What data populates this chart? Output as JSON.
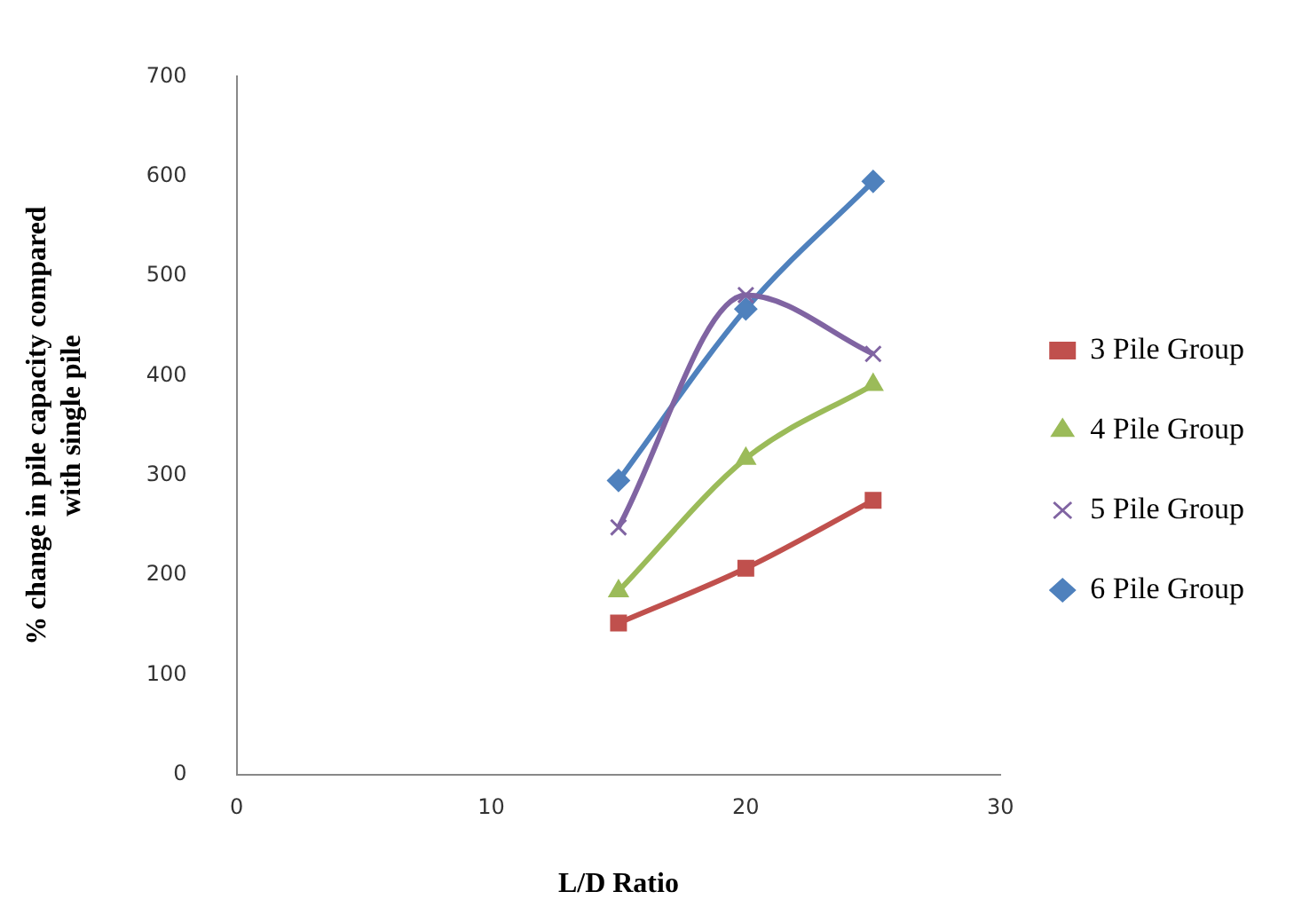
{
  "chart_data": {
    "type": "line",
    "xlabel": "L/D Ratio",
    "ylabel": "% change in pile capacity compared with single pile",
    "x": [
      15,
      20,
      25
    ],
    "series": [
      {
        "name": "3 Pile Group",
        "color": "#c0504d",
        "marker": "square",
        "values": [
          152,
          207,
          275
        ]
      },
      {
        "name": "4 Pile Group",
        "color": "#9bbb59",
        "marker": "triangle",
        "values": [
          184,
          317,
          391
        ]
      },
      {
        "name": "5 Pile Group",
        "color": "#8064a2",
        "marker": "cross",
        "values": [
          248,
          481,
          422
        ]
      },
      {
        "name": "6 Pile Group",
        "color": "#4f81bd",
        "marker": "diamond",
        "values": [
          295,
          467,
          595
        ]
      }
    ],
    "xlim": [
      0,
      30
    ],
    "xticks": [
      0,
      10,
      20,
      30
    ],
    "ylim": [
      0,
      700
    ],
    "yticks": [
      0,
      100,
      200,
      300,
      400,
      500,
      600,
      700
    ],
    "grid": false,
    "legend": "right"
  }
}
